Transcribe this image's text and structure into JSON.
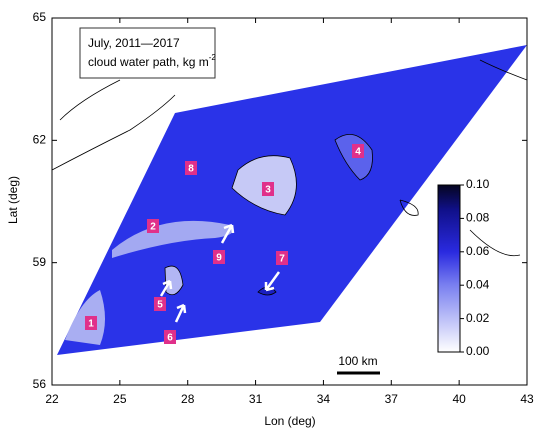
{
  "chart_data": {
    "type": "map",
    "legend_text": {
      "line1": "July, 2011—2017",
      "line2": "cloud water path, kg m",
      "exponent": "-2"
    },
    "xlabel": "Lon (deg)",
    "ylabel": "Lat (deg)",
    "xlim": [
      22,
      43
    ],
    "xticks": [
      22,
      25,
      28,
      31,
      34,
      37,
      40,
      43
    ],
    "ylim": [
      56,
      65
    ],
    "yticks": [
      56,
      59,
      62,
      65
    ],
    "colorbar": {
      "clim": [
        0,
        0.1
      ],
      "ticks": [
        {
          "value": 0,
          "label": "0.00"
        },
        {
          "value": 0.02,
          "label": "0.02"
        },
        {
          "value": 0.04,
          "label": "0.04"
        },
        {
          "value": 0.06,
          "label": "0.06"
        },
        {
          "value": 0.08,
          "label": "0.08"
        },
        {
          "value": 0.1,
          "label": "0.10"
        }
      ]
    },
    "region_labels": [
      "1",
      "2",
      "3",
      "4",
      "5",
      "6",
      "7",
      "8",
      "9"
    ],
    "scale_bar": "100 km"
  }
}
